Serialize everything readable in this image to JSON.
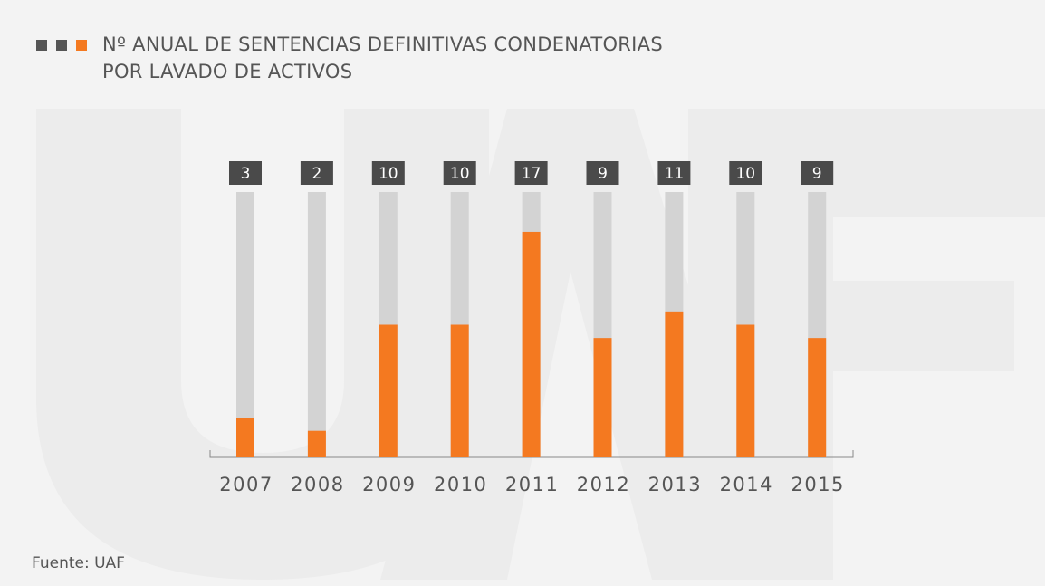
{
  "chart_data": {
    "type": "bar",
    "title": [
      "Nº ANUAL DE SENTENCIAS DEFINITIVAS CONDENATORIAS",
      "POR LAVADO DE ACTIVOS"
    ],
    "categories": [
      "2007",
      "2008",
      "2009",
      "2010",
      "2011",
      "2012",
      "2013",
      "2014",
      "2015"
    ],
    "values": [
      3,
      2,
      10,
      10,
      17,
      9,
      11,
      10,
      9
    ],
    "color": "#f47920",
    "ylim": [
      0,
      20
    ],
    "source": "Fuente: UAF"
  }
}
